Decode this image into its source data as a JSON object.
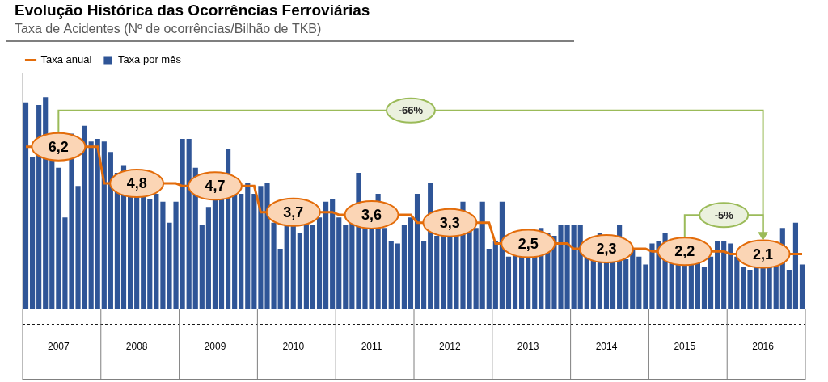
{
  "chart_data": {
    "type": "bar",
    "title": "Evolução Histórica das Ocorrências Ferroviárias",
    "subtitle": "Taxa de Acidentes (Nº de ocorrências/Bilhão de TKB)",
    "legend": "top",
    "grid": false,
    "tick_labels": "x",
    "ylim": [
      0,
      9
    ],
    "categories": [
      null,
      null,
      null,
      null,
      null,
      "2007",
      null,
      null,
      null,
      null,
      null,
      null,
      null,
      null,
      null,
      null,
      null,
      "2008",
      null,
      null,
      null,
      null,
      null,
      null,
      null,
      null,
      null,
      null,
      null,
      "2009",
      null,
      null,
      null,
      null,
      null,
      null,
      null,
      null,
      null,
      null,
      null,
      "2010",
      null,
      null,
      null,
      null,
      null,
      null,
      null,
      null,
      null,
      null,
      null,
      "2011",
      null,
      null,
      null,
      null,
      null,
      null,
      null,
      null,
      null,
      null,
      null,
      "2012",
      null,
      null,
      null,
      null,
      null,
      null,
      null,
      null,
      null,
      null,
      null,
      "2013",
      null,
      null,
      null,
      null,
      null,
      null,
      null,
      null,
      null,
      null,
      null,
      "2014",
      null,
      null,
      null,
      null,
      null,
      null,
      null,
      null,
      null,
      null,
      null,
      "2015",
      null,
      null,
      null,
      null,
      null,
      null,
      null,
      null,
      null,
      null,
      null,
      "2016",
      null,
      null,
      null,
      null,
      null,
      null
    ],
    "series": [
      {
        "name": "Taxa por mês",
        "type": "bar",
        "color": "#2f5597",
        "values": [
          7.9,
          5.8,
          7.8,
          8.1,
          6.2,
          5.4,
          3.5,
          6.7,
          4.7,
          7.0,
          6.4,
          6.5,
          6.4,
          6.0,
          5.2,
          5.5,
          5.2,
          4.9,
          4.4,
          4.2,
          4.4,
          4.1,
          3.3,
          4.1,
          6.5,
          6.5,
          5.4,
          3.2,
          3.9,
          4.7,
          5.2,
          6.1,
          4.9,
          4.4,
          4.8,
          4.4,
          4.7,
          4.8,
          3.3,
          2.3,
          3.2,
          3.9,
          2.9,
          3.6,
          3.2,
          3.5,
          4.1,
          4.2,
          3.5,
          3.2,
          3.6,
          5.2,
          4.1,
          3.3,
          4.4,
          3.1,
          2.6,
          2.5,
          3.2,
          3.5,
          4.4,
          2.6,
          4.8,
          2.8,
          3.5,
          3.5,
          3.6,
          4.1,
          3.2,
          3.1,
          4.1,
          2.3,
          2.6,
          4.1,
          2.0,
          2.5,
          2.6,
          2.3,
          2.6,
          3.1,
          2.9,
          2.8,
          3.2,
          3.2,
          3.2,
          3.2,
          2.6,
          2.3,
          2.9,
          2.8,
          2.3,
          3.2,
          1.9,
          2.3,
          2.0,
          1.7,
          2.5,
          2.6,
          2.9,
          2.3,
          1.7,
          1.9,
          2.5,
          2.0,
          1.6,
          2.0,
          2.6,
          2.6,
          2.5,
          2.0,
          1.6,
          1.5,
          1.7,
          2.3,
          2.6,
          1.9,
          3.1,
          1.5,
          3.3,
          1.7
        ]
      },
      {
        "name": "Taxa anual",
        "type": "line",
        "color": "#e36c0a",
        "data_labels": true,
        "values": [
          6.2,
          6.2,
          6.2,
          6.2,
          6.2,
          6.2,
          6.2,
          6.2,
          6.2,
          6.2,
          6.2,
          6.2,
          4.8,
          4.8,
          4.8,
          4.8,
          4.8,
          4.8,
          4.8,
          4.8,
          4.8,
          4.8,
          4.8,
          4.8,
          4.7,
          4.7,
          4.7,
          4.7,
          4.7,
          4.7,
          4.7,
          4.7,
          4.7,
          4.7,
          4.7,
          4.7,
          3.7,
          3.7,
          3.7,
          3.7,
          3.7,
          3.7,
          3.7,
          3.7,
          3.7,
          3.7,
          3.7,
          3.7,
          3.6,
          3.6,
          3.6,
          3.6,
          3.6,
          3.6,
          3.6,
          3.6,
          3.6,
          3.6,
          3.6,
          3.6,
          3.3,
          3.3,
          3.3,
          3.3,
          3.3,
          3.3,
          3.3,
          3.3,
          3.3,
          3.3,
          3.3,
          3.3,
          2.5,
          2.5,
          2.5,
          2.5,
          2.5,
          2.5,
          2.5,
          2.5,
          2.5,
          2.5,
          2.5,
          2.5,
          2.3,
          2.3,
          2.3,
          2.3,
          2.3,
          2.3,
          2.3,
          2.3,
          2.3,
          2.3,
          2.3,
          2.3,
          2.2,
          2.2,
          2.2,
          2.2,
          2.2,
          2.2,
          2.2,
          2.2,
          2.2,
          2.2,
          2.2,
          2.2,
          2.1,
          2.1,
          2.1,
          2.1,
          2.1,
          2.1,
          2.1,
          2.1,
          2.1,
          2.1,
          2.1,
          2.1
        ],
        "value_labels": [
          null,
          null,
          null,
          null,
          null,
          "6,2",
          null,
          null,
          null,
          null,
          null,
          null,
          null,
          null,
          null,
          null,
          null,
          "4,8",
          null,
          null,
          null,
          null,
          null,
          null,
          null,
          null,
          null,
          null,
          null,
          "4,7",
          null,
          null,
          null,
          null,
          null,
          null,
          null,
          null,
          null,
          null,
          null,
          "3,7",
          null,
          null,
          null,
          null,
          null,
          null,
          null,
          null,
          null,
          null,
          null,
          "3,6",
          null,
          null,
          null,
          null,
          null,
          null,
          null,
          null,
          null,
          null,
          null,
          "3,3",
          null,
          null,
          null,
          null,
          null,
          null,
          null,
          null,
          null,
          null,
          null,
          "2,5",
          null,
          null,
          null,
          null,
          null,
          null,
          null,
          null,
          null,
          null,
          null,
          "2,3",
          null,
          null,
          null,
          null,
          null,
          null,
          null,
          null,
          null,
          null,
          null,
          "2,2",
          null,
          null,
          null,
          null,
          null,
          null,
          null,
          null,
          null,
          null,
          null,
          "2,1",
          null,
          null,
          null,
          null,
          null,
          null
        ]
      }
    ],
    "annotations": [
      {
        "text": "-66%",
        "from": "2007",
        "to": "2016"
      },
      {
        "text": "-5%",
        "from": "2015",
        "to": "2016"
      }
    ]
  }
}
